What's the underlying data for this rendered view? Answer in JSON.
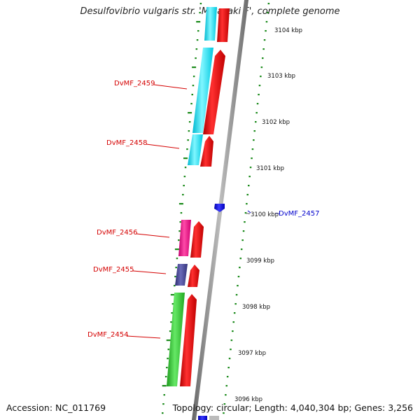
{
  "title": "Desulfovibrio vulgaris str. 'Miyazaki F', complete genome",
  "accession": "Accession: NC_011769",
  "topology": "Topology: circular; Length: 4,040,304 bp; Genes: 3,256",
  "colors": {
    "backbone": "#8a8a8a",
    "cds_forward": "#ee0000",
    "cds_blue": "#1a1aff",
    "tick_green": "#1a8a1a",
    "label_red": "#d40000",
    "label_blue": "#0000cc"
  },
  "scale_labels": [
    "3104 kbp",
    "3103 kbp",
    "3102 kbp",
    "3101 kbp",
    "3100 kbp",
    "3099 kbp",
    "3098 kbp",
    "3097 kbp",
    "3096 kbp"
  ],
  "gene_labels": [
    {
      "name": "DvMF_2459",
      "color": "red"
    },
    {
      "name": "DvMF_2458",
      "color": "red"
    },
    {
      "name": "DvMF_2457",
      "color": "blue"
    },
    {
      "name": "DvMF_2456",
      "color": "red"
    },
    {
      "name": "DvMF_2455",
      "color": "red"
    },
    {
      "name": "DvMF_2454",
      "color": "red"
    }
  ],
  "cog_tracks": [
    {
      "color": "#00e8ff"
    },
    {
      "color": "#ff1493"
    },
    {
      "color": "#48489a"
    },
    {
      "color": "#33cc33"
    }
  ]
}
